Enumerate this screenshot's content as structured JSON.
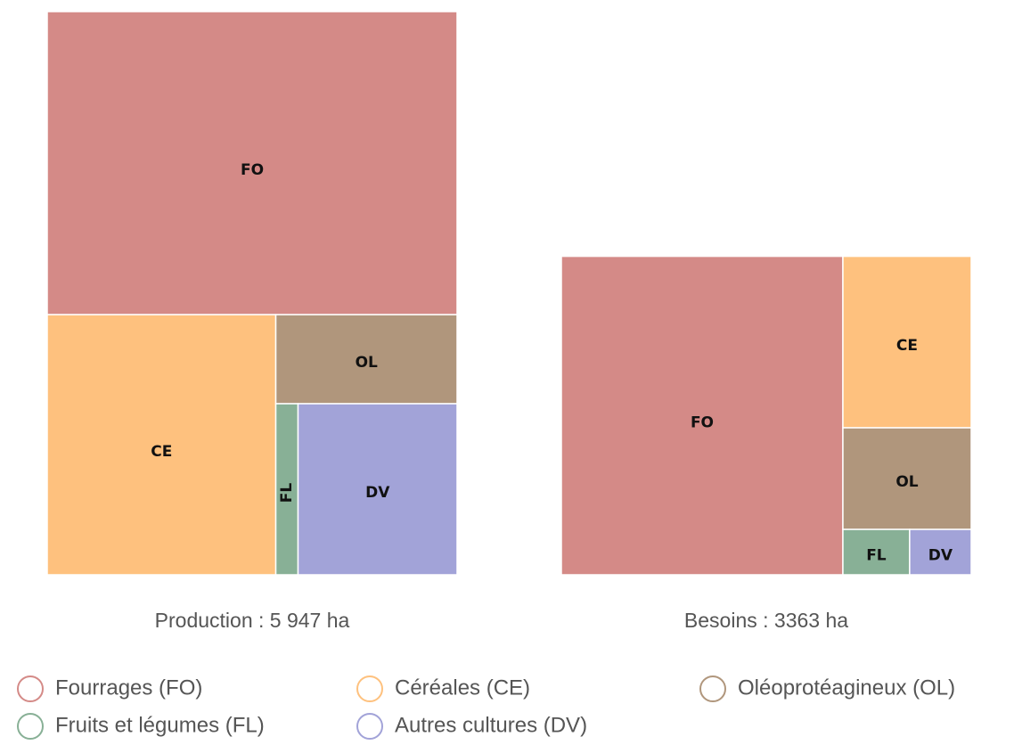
{
  "chart_data": [
    {
      "type": "treemap",
      "title": "Production : 5 947 ha",
      "categories": [
        "FO",
        "CE",
        "OL",
        "FL",
        "DV"
      ],
      "values": [
        3200,
        1532,
        416,
        98,
        701
      ]
    },
    {
      "type": "treemap",
      "title": "Besoins : 3363 ha",
      "categories": [
        "FO",
        "CE",
        "OL",
        "FL",
        "DV"
      ],
      "values": [
        2310,
        567,
        336,
        78,
        72
      ]
    }
  ],
  "legend": [
    {
      "label": "Fourrages (FO)",
      "color": "#d48a87"
    },
    {
      "label": "Céréales (CE)",
      "color": "#fec17e"
    },
    {
      "label": "Oléoprotéagineux (OL)",
      "color": "#b0967c"
    },
    {
      "label": "Fruits et légumes (FL)",
      "color": "#88b096"
    },
    {
      "label": "Autres cultures (DV)",
      "color": "#a2a3d8"
    }
  ]
}
